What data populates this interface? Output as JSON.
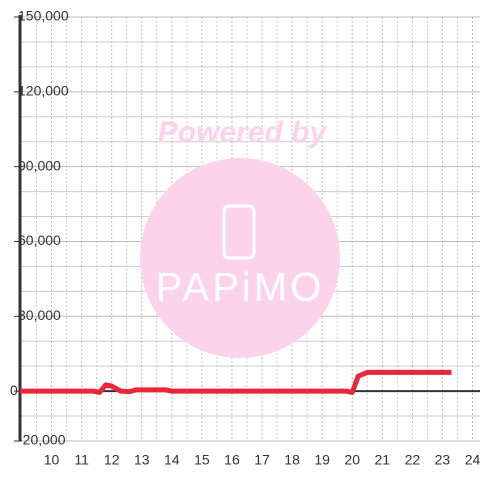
{
  "chart_data": {
    "type": "line",
    "x": [
      8.95,
      11.4,
      11.6,
      11.8,
      12.0,
      12.3,
      12.6,
      12.8,
      13.8,
      14.0,
      19.8,
      20.0,
      20.2,
      20.5,
      23.3
    ],
    "series": [
      {
        "name": "",
        "color": "#e8283a",
        "values": [
          0,
          0,
          -500,
          2500,
          2000,
          0,
          -200,
          500,
          500,
          0,
          0,
          -500,
          6000,
          7500,
          7500
        ]
      }
    ],
    "xlim": [
      8.95,
      24.25
    ],
    "xticks": [
      10,
      11,
      12,
      13,
      14,
      15,
      16,
      17,
      18,
      19,
      20,
      21,
      22,
      23,
      24
    ],
    "minor_xticks": [
      9.5,
      10.5,
      11.5,
      12.5,
      13.5,
      14.5,
      15.5,
      16.5,
      17.5,
      18.5,
      19.5,
      20.5,
      21.5,
      22.5,
      23.5
    ],
    "ylim": [
      -20000,
      150000
    ],
    "yticks": [
      {
        "value": -20000,
        "label": "-20,000"
      },
      0,
      {
        "value": 30000,
        "label": "30,000"
      },
      {
        "value": 60000,
        "label": "60,000"
      },
      {
        "value": 90000,
        "label": "90,000"
      },
      {
        "value": 120000,
        "label": "120,000"
      },
      {
        "value": 150000,
        "label": "150,000"
      }
    ],
    "minor_yticks": [
      -10000,
      10000,
      20000,
      40000,
      50000,
      70000,
      80000,
      100000,
      110000,
      130000,
      140000
    ],
    "grid": true
  },
  "watermark": {
    "caption": "Powered by",
    "brand": "PAPiMO"
  }
}
